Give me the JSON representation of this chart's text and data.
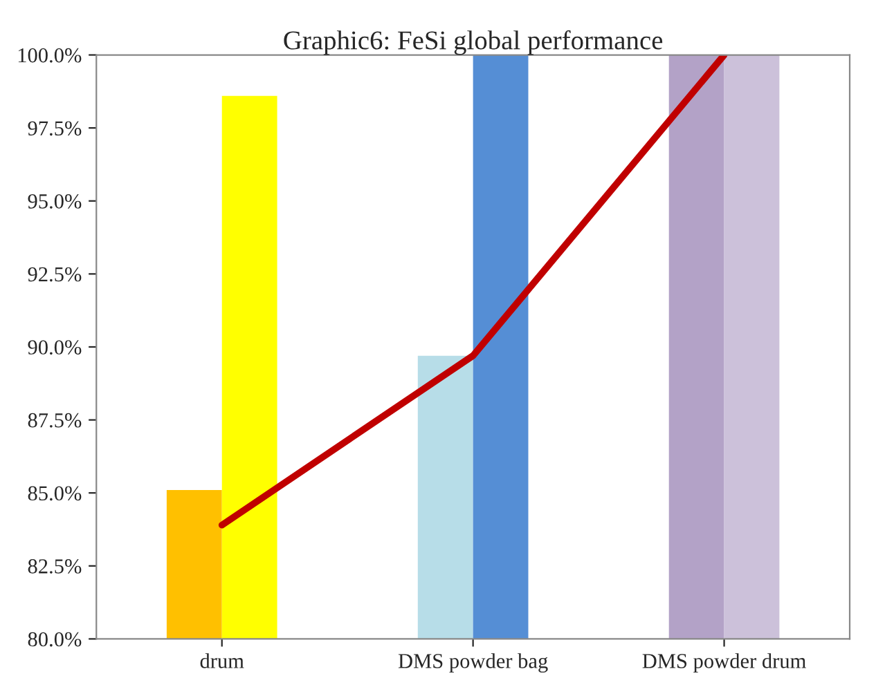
{
  "chart_data": {
    "type": "bar",
    "title": "Graphic6: FeSi global performance",
    "categories": [
      "drum",
      "DMS powder bag",
      "DMS powder drum"
    ],
    "series": [
      {
        "colors": [
          "#ffc000",
          "#b7dde8",
          "#b3a2c7"
        ],
        "values": [
          85.1,
          89.7,
          100.0
        ]
      },
      {
        "colors": [
          "#ffff00",
          "#558ed5",
          "#ccc1da"
        ],
        "values": [
          98.6,
          100.0,
          100.0
        ]
      },
      {
        "type": "line",
        "color": "#c00000",
        "values": [
          83.9,
          89.7,
          100.0
        ]
      }
    ],
    "ylim": [
      80,
      100
    ],
    "yticks": [
      {
        "value": 80,
        "label": "80.0%"
      },
      {
        "value": 82.5,
        "label": "82.5%"
      },
      {
        "value": 85,
        "label": "85.0%"
      },
      {
        "value": 87.5,
        "label": "87.5%"
      },
      {
        "value": 90,
        "label": "90.0%"
      },
      {
        "value": 92.5,
        "label": "92.5%"
      },
      {
        "value": 95,
        "label": "95.0%"
      },
      {
        "value": 97.5,
        "label": "97.5%"
      },
      {
        "value": 100,
        "label": "100.0%"
      }
    ],
    "grid": false,
    "legend": false,
    "marker": "none",
    "line_style": "solid"
  }
}
